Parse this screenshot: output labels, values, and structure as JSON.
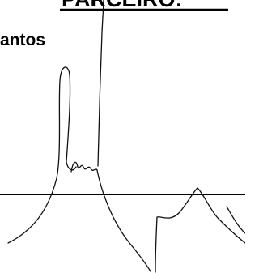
{
  "header": {
    "title": "PARCEIRO:"
  },
  "fields": {
    "label": "antos"
  }
}
